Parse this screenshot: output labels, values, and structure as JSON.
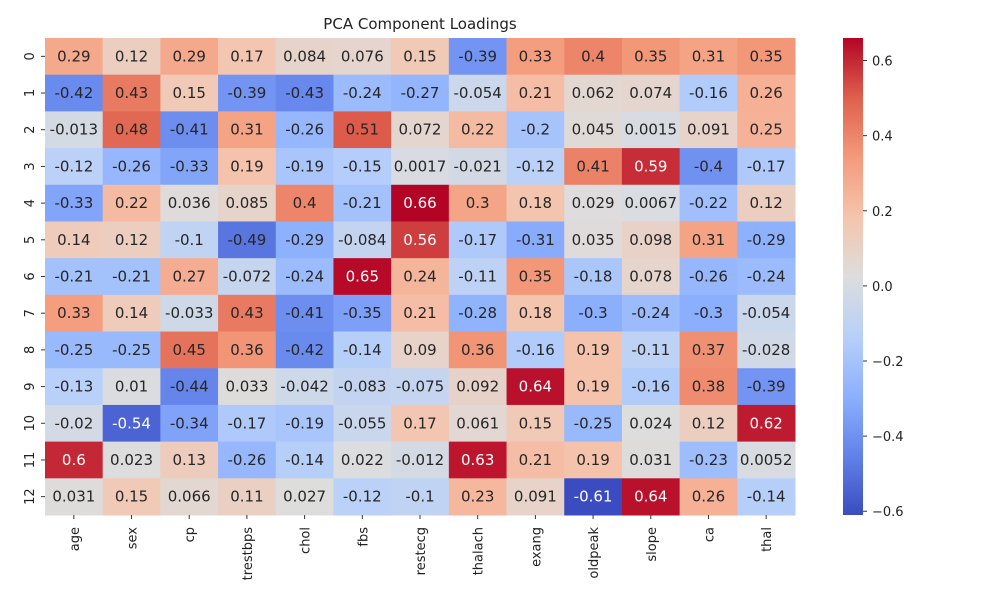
{
  "chart_data": {
    "type": "heatmap",
    "title": "PCA Component Loadings",
    "x_categories": [
      "age",
      "sex",
      "cp",
      "trestbps",
      "chol",
      "fbs",
      "restecg",
      "thalach",
      "exang",
      "oldpeak",
      "slope",
      "ca",
      "thal"
    ],
    "y_categories": [
      "0",
      "1",
      "2",
      "3",
      "4",
      "5",
      "6",
      "7",
      "8",
      "9",
      "10",
      "11",
      "12"
    ],
    "values": [
      [
        0.29,
        0.12,
        0.29,
        0.17,
        0.084,
        0.076,
        0.15,
        -0.39,
        0.33,
        0.4,
        0.35,
        0.31,
        0.35
      ],
      [
        -0.42,
        0.43,
        0.15,
        -0.39,
        -0.43,
        -0.24,
        -0.27,
        -0.054,
        0.21,
        0.062,
        0.074,
        -0.16,
        0.26
      ],
      [
        -0.013,
        0.48,
        -0.41,
        0.31,
        -0.26,
        0.51,
        0.072,
        0.22,
        -0.2,
        0.045,
        0.0015,
        0.091,
        0.25
      ],
      [
        -0.12,
        -0.26,
        -0.33,
        0.19,
        -0.19,
        -0.15,
        0.0017,
        -0.021,
        -0.12,
        0.41,
        0.59,
        -0.4,
        -0.17
      ],
      [
        -0.33,
        0.22,
        0.036,
        0.085,
        0.4,
        -0.21,
        0.66,
        0.3,
        0.18,
        0.029,
        0.0067,
        -0.22,
        0.12
      ],
      [
        0.14,
        0.12,
        -0.1,
        -0.49,
        -0.29,
        -0.084,
        0.56,
        -0.17,
        -0.31,
        0.035,
        0.098,
        0.31,
        -0.29
      ],
      [
        -0.21,
        -0.21,
        0.27,
        -0.072,
        -0.24,
        0.65,
        0.24,
        -0.11,
        0.35,
        -0.18,
        0.078,
        -0.26,
        -0.24
      ],
      [
        0.33,
        0.14,
        -0.033,
        0.43,
        -0.41,
        -0.35,
        0.21,
        -0.28,
        0.18,
        -0.3,
        -0.24,
        -0.3,
        -0.054
      ],
      [
        -0.25,
        -0.25,
        0.45,
        0.36,
        -0.42,
        -0.14,
        0.09,
        0.36,
        -0.16,
        0.19,
        -0.11,
        0.37,
        -0.028
      ],
      [
        -0.13,
        0.01,
        -0.44,
        0.033,
        -0.042,
        -0.083,
        -0.075,
        0.092,
        0.64,
        0.19,
        -0.16,
        0.38,
        -0.39
      ],
      [
        -0.02,
        -0.54,
        -0.34,
        -0.17,
        -0.19,
        -0.055,
        0.17,
        0.061,
        0.15,
        -0.25,
        0.024,
        0.12,
        0.62
      ],
      [
        0.6,
        0.023,
        0.13,
        -0.26,
        -0.14,
        0.022,
        -0.012,
        0.63,
        0.21,
        0.19,
        0.031,
        -0.23,
        0.0052
      ],
      [
        0.031,
        0.15,
        0.066,
        0.11,
        0.027,
        -0.12,
        -0.1,
        0.23,
        0.091,
        -0.61,
        0.64,
        0.26,
        -0.14
      ]
    ],
    "annotated": true,
    "colormap": "coolwarm",
    "vmin": -0.61,
    "vmax": 0.66,
    "colorbar_ticks": [
      "0.6",
      "0.4",
      "0.2",
      "0.0",
      "−0.2",
      "−0.4",
      "−0.6"
    ],
    "colorbar_tick_values": [
      0.6,
      0.4,
      0.2,
      0.0,
      -0.2,
      -0.4,
      -0.6
    ],
    "grid": false,
    "legend": "colorbar-right"
  }
}
